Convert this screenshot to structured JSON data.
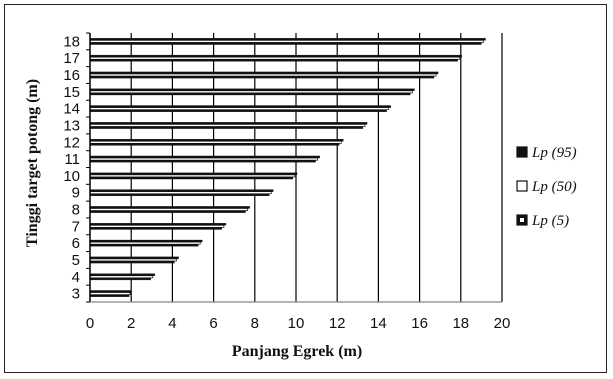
{
  "chart_data": {
    "type": "bar",
    "orientation": "horizontal",
    "title": "",
    "xlabel": "Panjang Egrek (m)",
    "ylabel": "Tinggi target potong (m)",
    "xlim": [
      0,
      20
    ],
    "xticks": [
      0,
      2,
      4,
      6,
      8,
      10,
      12,
      14,
      16,
      18,
      20
    ],
    "categories": [
      "3",
      "4",
      "5",
      "6",
      "7",
      "8",
      "9",
      "10",
      "11",
      "12",
      "13",
      "14",
      "15",
      "16",
      "17",
      "18"
    ],
    "grid": "vertical",
    "legend_position": "right",
    "colors": {
      "Lp (95)": "#111111",
      "Lp (50)": "#ffffff",
      "Lp (5)": "#111111",
      "grid": "#000000",
      "axis": "#888888"
    },
    "series": [
      {
        "name": "Lp (95)",
        "values": [
          2.0,
          3.15,
          4.3,
          5.45,
          6.6,
          7.75,
          8.9,
          10.05,
          11.15,
          12.3,
          13.45,
          14.6,
          15.75,
          16.9,
          18.05,
          19.2
        ]
      },
      {
        "name": "Lp (50)",
        "values": [
          1.95,
          3.05,
          4.2,
          5.35,
          6.5,
          7.65,
          8.8,
          9.95,
          11.05,
          12.2,
          13.35,
          14.5,
          15.65,
          16.8,
          17.95,
          19.1
        ]
      },
      {
        "name": "Lp (5)",
        "values": [
          1.9,
          2.95,
          4.1,
          5.25,
          6.4,
          7.55,
          8.7,
          9.85,
          10.95,
          12.1,
          13.25,
          14.4,
          15.55,
          16.7,
          17.85,
          19.0
        ]
      }
    ]
  }
}
